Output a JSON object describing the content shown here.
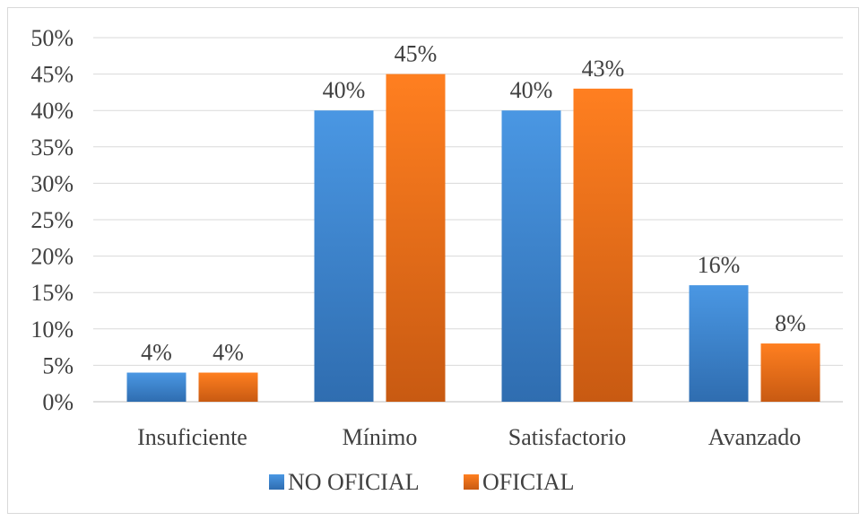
{
  "chart_data": {
    "type": "bar",
    "categories": [
      "Insuficiente",
      "Mínimo",
      "Satisfactorio",
      "Avanzado"
    ],
    "series": [
      {
        "name": "NO OFICIAL",
        "values": [
          0.04,
          0.4,
          0.4,
          0.16
        ],
        "labels": [
          "4%",
          "40%",
          "40%",
          "16%"
        ],
        "color": "#3a7dc9"
      },
      {
        "name": "OFICIAL",
        "values": [
          0.04,
          0.45,
          0.43,
          0.08
        ],
        "labels": [
          "4%",
          "45%",
          "43%",
          "8%"
        ],
        "color": "#e8701c"
      }
    ],
    "ylim": [
      0,
      0.5
    ],
    "yticks": [
      "0%",
      "5%",
      "10%",
      "15%",
      "20%",
      "25%",
      "30%",
      "35%",
      "40%",
      "45%",
      "50%"
    ],
    "grid": true,
    "legend_position": "bottom"
  }
}
